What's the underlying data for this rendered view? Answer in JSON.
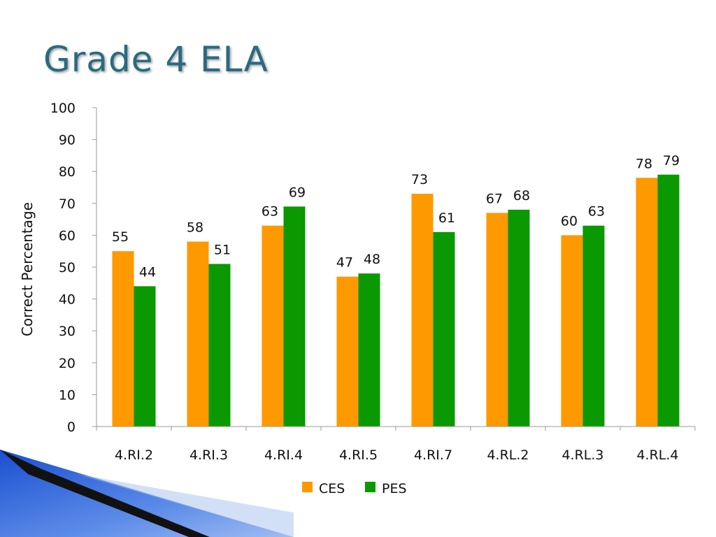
{
  "slide": {
    "title": "Grade 4 ELA"
  },
  "colors": {
    "CES": "#ff9900",
    "PES": "#0a9900",
    "title": "#2a6a80"
  },
  "chart_data": {
    "type": "bar",
    "title": "Grade 4 ELA",
    "xlabel": "",
    "ylabel": "Correct Percentage",
    "ylim": [
      0,
      100
    ],
    "yticks": [
      0,
      10,
      20,
      30,
      40,
      50,
      60,
      70,
      80,
      90,
      100
    ],
    "grid": false,
    "legend_position": "bottom-center",
    "categories": [
      "4.RI.2",
      "4.RI.3",
      "4.RI.4",
      "4.RI.5",
      "4.RI.7",
      "4.RL.2",
      "4.RL.3",
      "4.RL.4"
    ],
    "series": [
      {
        "name": "CES",
        "values": [
          55,
          58,
          63,
          47,
          73,
          67,
          60,
          78
        ]
      },
      {
        "name": "PES",
        "values": [
          44,
          51,
          69,
          48,
          61,
          68,
          63,
          79
        ]
      }
    ]
  }
}
